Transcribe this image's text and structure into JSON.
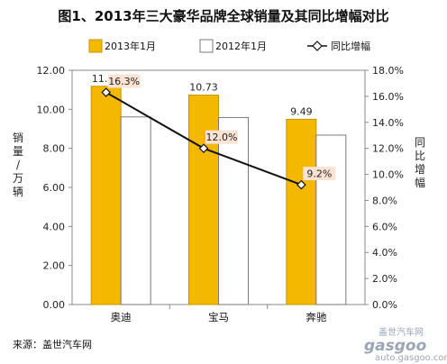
{
  "page": {
    "title": "图1、2013年三大豪华品牌全球销量及其同比增幅对比",
    "source": "来源：盖世汽车网",
    "watermark": {
      "brand": "gasgoo",
      "cn": "盖世汽车网",
      "url": "auto.gasgoo.com"
    }
  },
  "colors": {
    "bar2013": "#f5b800",
    "bar2013_edge": "#c79400",
    "bar2012": "#ffffff",
    "bar2012_edge": "#7a7a7a",
    "line": "#111111",
    "label_bg": "#fbe3d3"
  },
  "chart_data": {
    "type": "bar",
    "title": "图1、2013年三大豪华品牌全球销量及其同比增幅对比",
    "categories": [
      "奥迪",
      "宝马",
      "奔驰"
    ],
    "series": [
      {
        "name": "2013年1月",
        "type": "bar",
        "axis": "left",
        "values": [
          11.18,
          10.73,
          9.49
        ],
        "labels": [
          "11.18",
          "10.73",
          "9.49"
        ]
      },
      {
        "name": "2012年1月",
        "type": "bar",
        "axis": "left",
        "values": [
          9.61,
          9.58,
          8.68
        ]
      },
      {
        "name": "同比增幅",
        "type": "line",
        "axis": "right",
        "values": [
          16.3,
          12.0,
          9.2
        ],
        "labels": [
          "16.3%",
          "12.0%",
          "9.2%"
        ]
      }
    ],
    "ylabel": "销量/万辆",
    "ylabel_right": "同比增幅",
    "ylim": [
      0,
      12
    ],
    "ylim_right": [
      0,
      18
    ],
    "yticks": [
      "0.00",
      "2.00",
      "4.00",
      "6.00",
      "8.00",
      "10.00",
      "12.00"
    ],
    "yticks_right": [
      "0.0%",
      "2.0%",
      "4.0%",
      "6.0%",
      "8.0%",
      "10.0%",
      "12.0%",
      "14.0%",
      "16.0%",
      "18.0%"
    ],
    "legend_position": "top"
  }
}
